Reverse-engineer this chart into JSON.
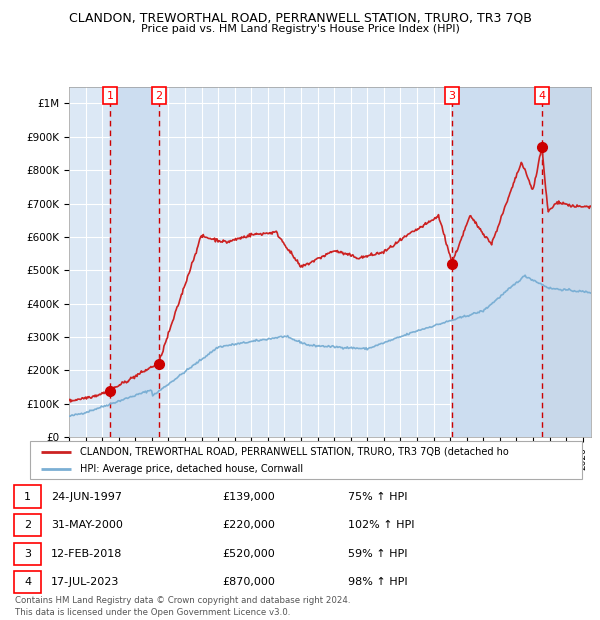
{
  "title": "CLANDON, TREWORTHAL ROAD, PERRANWELL STATION, TRURO, TR3 7QB",
  "subtitle": "Price paid vs. HM Land Registry's House Price Index (HPI)",
  "xlim": [
    1995.0,
    2026.5
  ],
  "ylim": [
    0,
    1050000
  ],
  "yticks": [
    0,
    100000,
    200000,
    300000,
    400000,
    500000,
    600000,
    700000,
    800000,
    900000,
    1000000
  ],
  "ytick_labels": [
    "£0",
    "£100K",
    "£200K",
    "£300K",
    "£400K",
    "£500K",
    "£600K",
    "£700K",
    "£800K",
    "£900K",
    "£1M"
  ],
  "xtick_years": [
    1995,
    1996,
    1997,
    1998,
    1999,
    2000,
    2001,
    2002,
    2003,
    2004,
    2005,
    2006,
    2007,
    2008,
    2009,
    2010,
    2011,
    2012,
    2013,
    2014,
    2015,
    2016,
    2017,
    2018,
    2019,
    2020,
    2021,
    2022,
    2023,
    2024,
    2025,
    2026
  ],
  "hpi_line_color": "#7bafd4",
  "price_line_color": "#cc2222",
  "sale_marker_color": "#cc0000",
  "bg_color": "#dce8f5",
  "grid_color": "#ffffff",
  "sale_vline_color": "#cc0000",
  "sale_bg_color": "#ccddf0",
  "hatch_bg_color": "#c8d8ea",
  "sales": [
    {
      "label": 1,
      "year": 1997.48,
      "price": 139000,
      "date": "24-JUN-1997",
      "pct": "75%",
      "dir": "↑"
    },
    {
      "label": 2,
      "year": 2000.41,
      "price": 220000,
      "date": "31-MAY-2000",
      "pct": "102%",
      "dir": "↑"
    },
    {
      "label": 3,
      "year": 2018.11,
      "price": 520000,
      "date": "12-FEB-2018",
      "pct": "59%",
      "dir": "↑"
    },
    {
      "label": 4,
      "year": 2023.54,
      "price": 870000,
      "date": "17-JUL-2023",
      "pct": "98%",
      "dir": "↑"
    }
  ],
  "legend_line1": "CLANDON, TREWORTHAL ROAD, PERRANWELL STATION, TRURO, TR3 7QB (detached ho",
  "legend_line2": "HPI: Average price, detached house, Cornwall",
  "footer1": "Contains HM Land Registry data © Crown copyright and database right 2024.",
  "footer2": "This data is licensed under the Open Government Licence v3.0."
}
